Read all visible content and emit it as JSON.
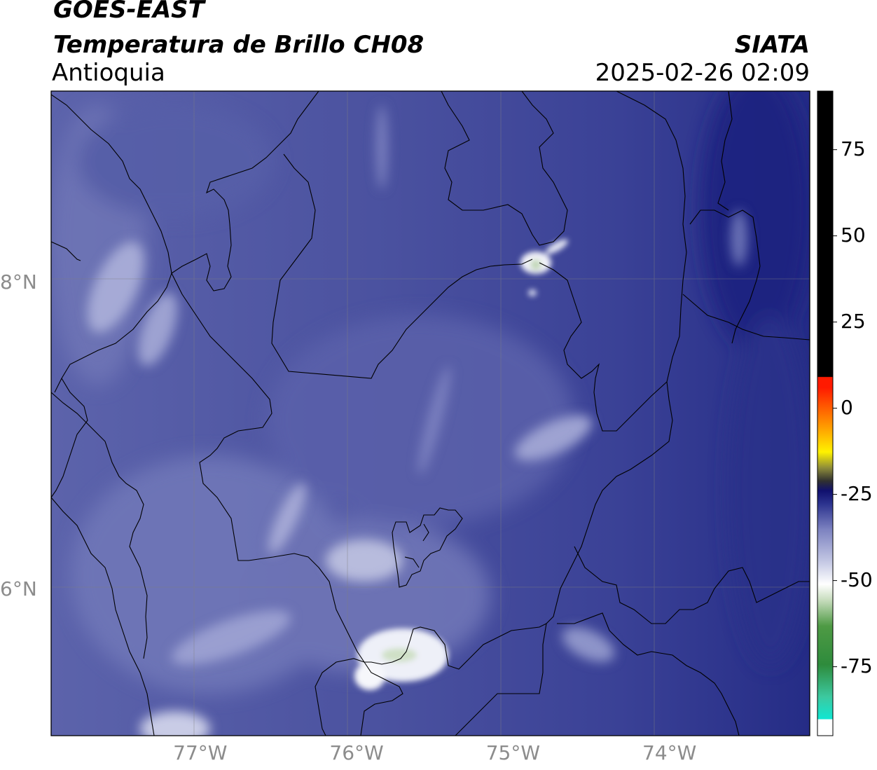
{
  "header": {
    "satellite": "GOES-EAST",
    "product": "Temperatura de Brillo CH08",
    "region": "Antioquia",
    "organization": "SIATA",
    "datetime": "2025-02-26 02:09"
  },
  "map": {
    "lon_range": [
      -77.95,
      -73.1
    ],
    "lat_range": [
      5.05,
      9.25
    ],
    "gridlines": true,
    "xticks": [
      {
        "lon": -77,
        "label": "77°W"
      },
      {
        "lon": -76,
        "label": "76°W"
      },
      {
        "lon": -75,
        "label": "75°W"
      },
      {
        "lon": -74,
        "label": "74°W"
      }
    ],
    "yticks": [
      {
        "lat": 8,
        "label": "8°N"
      },
      {
        "lat": 6,
        "label": "6°N"
      }
    ]
  },
  "colorbar": {
    "range": [
      -95,
      92
    ],
    "ticks": [
      {
        "value": 75,
        "label": "75"
      },
      {
        "value": 50,
        "label": "50"
      },
      {
        "value": 25,
        "label": "25"
      },
      {
        "value": 0,
        "label": "0"
      },
      {
        "value": -25,
        "label": "-25"
      },
      {
        "value": -50,
        "label": "-50"
      },
      {
        "value": -75,
        "label": "-75"
      }
    ],
    "colors": {
      "background_field": "#3f469a",
      "cold_white": "#ffffff",
      "green": "#2e8b3c",
      "cyan": "#10e6d2",
      "red": "#ff1a00",
      "orange": "#ff9a00",
      "yellow": "#fff200",
      "navy": "#10106e",
      "black": "#000000"
    }
  }
}
